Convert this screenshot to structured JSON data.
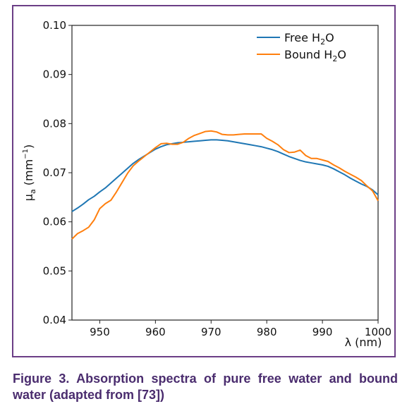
{
  "chart_data": {
    "type": "line",
    "xlabel": "λ (nm)",
    "ylabel_main": "μ",
    "ylabel_sub": "a",
    "ylabel_unit": " (mm",
    "ylabel_sup": "−1",
    "ylabel_close": ")",
    "xlim": [
      945,
      1000
    ],
    "ylim": [
      0.04,
      0.1
    ],
    "x_ticks": [
      950,
      960,
      970,
      980,
      990,
      1000
    ],
    "y_ticks": [
      "0.04",
      "0.05",
      "0.06",
      "0.07",
      "0.08",
      "0.09",
      "0.10"
    ],
    "grid": false,
    "legend_position": "top-right",
    "series": [
      {
        "name": "Free H2O",
        "name_main": "Free H",
        "name_sub": "2",
        "name_tail": "O",
        "color": "#1f77b4",
        "x": [
          945,
          946,
          947,
          948,
          949,
          950,
          951,
          952,
          953,
          954,
          955,
          956,
          957,
          958,
          959,
          960,
          961,
          962,
          963,
          964,
          965,
          966,
          967,
          968,
          969,
          970,
          971,
          972,
          973,
          974,
          975,
          976,
          977,
          978,
          979,
          980,
          981,
          982,
          983,
          984,
          985,
          986,
          987,
          988,
          989,
          990,
          991,
          992,
          993,
          994,
          995,
          996,
          997,
          998,
          999,
          1000
        ],
        "y": [
          0.0621,
          0.0628,
          0.0636,
          0.0645,
          0.0652,
          0.0661,
          0.0669,
          0.0679,
          0.0689,
          0.0699,
          0.0709,
          0.0719,
          0.0727,
          0.0734,
          0.0741,
          0.0748,
          0.0753,
          0.0757,
          0.0759,
          0.0761,
          0.0762,
          0.0763,
          0.0764,
          0.0765,
          0.0766,
          0.0767,
          0.0767,
          0.0766,
          0.0765,
          0.0763,
          0.0761,
          0.0759,
          0.0757,
          0.0755,
          0.0753,
          0.075,
          0.0747,
          0.0743,
          0.0738,
          0.0733,
          0.0729,
          0.0725,
          0.0722,
          0.072,
          0.0718,
          0.0716,
          0.0713,
          0.0708,
          0.0702,
          0.0696,
          0.0689,
          0.0683,
          0.0677,
          0.0672,
          0.0665,
          0.0655
        ]
      },
      {
        "name": "Bound H2O",
        "name_main": "Bound H",
        "name_sub": "2",
        "name_tail": "O",
        "color": "#ff7f0e",
        "x": [
          945,
          946,
          947,
          948,
          949,
          950,
          951,
          952,
          953,
          954,
          955,
          956,
          957,
          958,
          959,
          960,
          961,
          962,
          963,
          964,
          965,
          966,
          967,
          968,
          969,
          970,
          971,
          972,
          973,
          974,
          975,
          976,
          977,
          978,
          979,
          980,
          981,
          982,
          983,
          984,
          985,
          986,
          987,
          988,
          989,
          990,
          991,
          992,
          993,
          994,
          995,
          996,
          997,
          998,
          999,
          1000
        ],
        "y": [
          0.0565,
          0.0576,
          0.0582,
          0.0589,
          0.0604,
          0.0627,
          0.0637,
          0.0644,
          0.0661,
          0.068,
          0.0699,
          0.0714,
          0.0724,
          0.0733,
          0.0742,
          0.0751,
          0.0759,
          0.076,
          0.0758,
          0.0758,
          0.0762,
          0.077,
          0.0776,
          0.078,
          0.0784,
          0.0785,
          0.0783,
          0.0778,
          0.0777,
          0.0777,
          0.0778,
          0.0779,
          0.0779,
          0.0779,
          0.0779,
          0.077,
          0.0764,
          0.0757,
          0.0747,
          0.0741,
          0.0742,
          0.0746,
          0.0735,
          0.0729,
          0.0729,
          0.0726,
          0.0723,
          0.0716,
          0.071,
          0.0703,
          0.0697,
          0.0691,
          0.0684,
          0.0673,
          0.0663,
          0.0643
        ]
      }
    ]
  },
  "caption": "Figure 3. Absorption spectra of pure free water and bound water (adapted from [73])"
}
